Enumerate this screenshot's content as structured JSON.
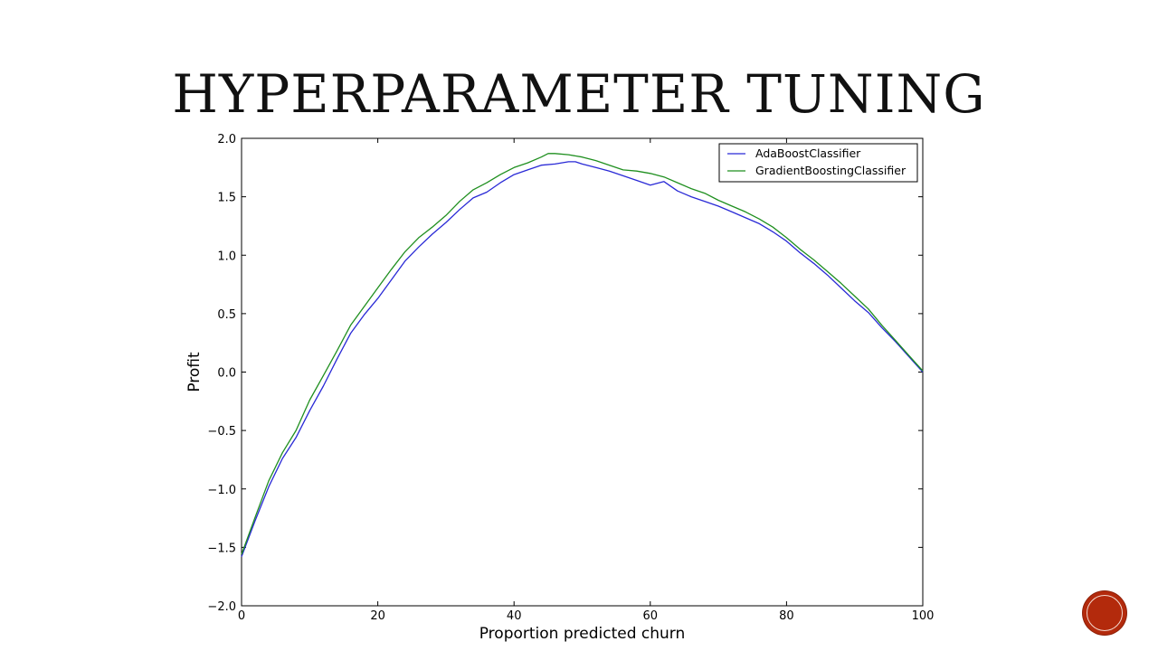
{
  "slide": {
    "title": "HYPERPARAMETER TUNING"
  },
  "chart_data": {
    "type": "line",
    "xlabel": "Proportion predicted churn",
    "ylabel": "Profit",
    "xlim": [
      0,
      100
    ],
    "ylim": [
      -2.0,
      2.0
    ],
    "xticks": [
      0,
      20,
      40,
      60,
      80,
      100
    ],
    "yticks": [
      -2.0,
      -1.5,
      -1.0,
      -0.5,
      0.0,
      0.5,
      1.0,
      1.5,
      2.0
    ],
    "xtick_labels": [
      "0",
      "20",
      "40",
      "60",
      "80",
      "100"
    ],
    "ytick_labels": [
      "−2.0",
      "−1.5",
      "−1.0",
      "−0.5",
      "0.0",
      "0.5",
      "1.0",
      "1.5",
      "2.0"
    ],
    "grid": false,
    "legend_position": "top-right",
    "series": [
      {
        "name": "AdaBoostClassifier",
        "color": "#2929d6",
        "x": [
          0,
          2,
          4,
          6,
          8,
          10,
          12,
          14,
          16,
          18,
          20,
          22,
          24,
          26,
          28,
          30,
          32,
          34,
          36,
          38,
          40,
          42,
          44,
          46,
          48,
          49,
          50,
          52,
          54,
          56,
          58,
          60,
          62,
          64,
          66,
          68,
          70,
          72,
          74,
          76,
          78,
          80,
          82,
          84,
          86,
          88,
          90,
          92,
          94,
          96,
          98,
          100
        ],
        "y": [
          -1.58,
          -1.27,
          -0.98,
          -0.74,
          -0.56,
          -0.33,
          -0.12,
          0.11,
          0.33,
          0.49,
          0.63,
          0.79,
          0.95,
          1.07,
          1.18,
          1.28,
          1.39,
          1.49,
          1.54,
          1.62,
          1.69,
          1.73,
          1.77,
          1.78,
          1.8,
          1.8,
          1.78,
          1.75,
          1.72,
          1.68,
          1.64,
          1.6,
          1.63,
          1.55,
          1.5,
          1.46,
          1.42,
          1.37,
          1.32,
          1.27,
          1.2,
          1.12,
          1.02,
          0.93,
          0.83,
          0.72,
          0.61,
          0.51,
          0.38,
          0.26,
          0.13,
          0.0
        ]
      },
      {
        "name": "GradientBoostingClassifier",
        "color": "#1f8f1f",
        "x": [
          0,
          2,
          4,
          6,
          8,
          10,
          12,
          14,
          16,
          18,
          20,
          22,
          24,
          26,
          28,
          30,
          32,
          34,
          36,
          38,
          40,
          42,
          44,
          45,
          46,
          48,
          50,
          52,
          54,
          56,
          58,
          60,
          62,
          64,
          66,
          68,
          70,
          72,
          74,
          76,
          78,
          80,
          82,
          84,
          86,
          88,
          90,
          92,
          94,
          96,
          98,
          100
        ],
        "y": [
          -1.56,
          -1.24,
          -0.93,
          -0.69,
          -0.5,
          -0.24,
          -0.03,
          0.18,
          0.4,
          0.56,
          0.72,
          0.88,
          1.03,
          1.15,
          1.24,
          1.34,
          1.46,
          1.56,
          1.62,
          1.69,
          1.75,
          1.79,
          1.84,
          1.87,
          1.87,
          1.86,
          1.84,
          1.81,
          1.77,
          1.73,
          1.72,
          1.7,
          1.67,
          1.62,
          1.57,
          1.53,
          1.47,
          1.42,
          1.37,
          1.31,
          1.24,
          1.15,
          1.05,
          0.96,
          0.86,
          0.76,
          0.65,
          0.54,
          0.4,
          0.27,
          0.14,
          0.01
        ]
      }
    ]
  },
  "icons": {
    "nav": "circle-button-icon"
  }
}
